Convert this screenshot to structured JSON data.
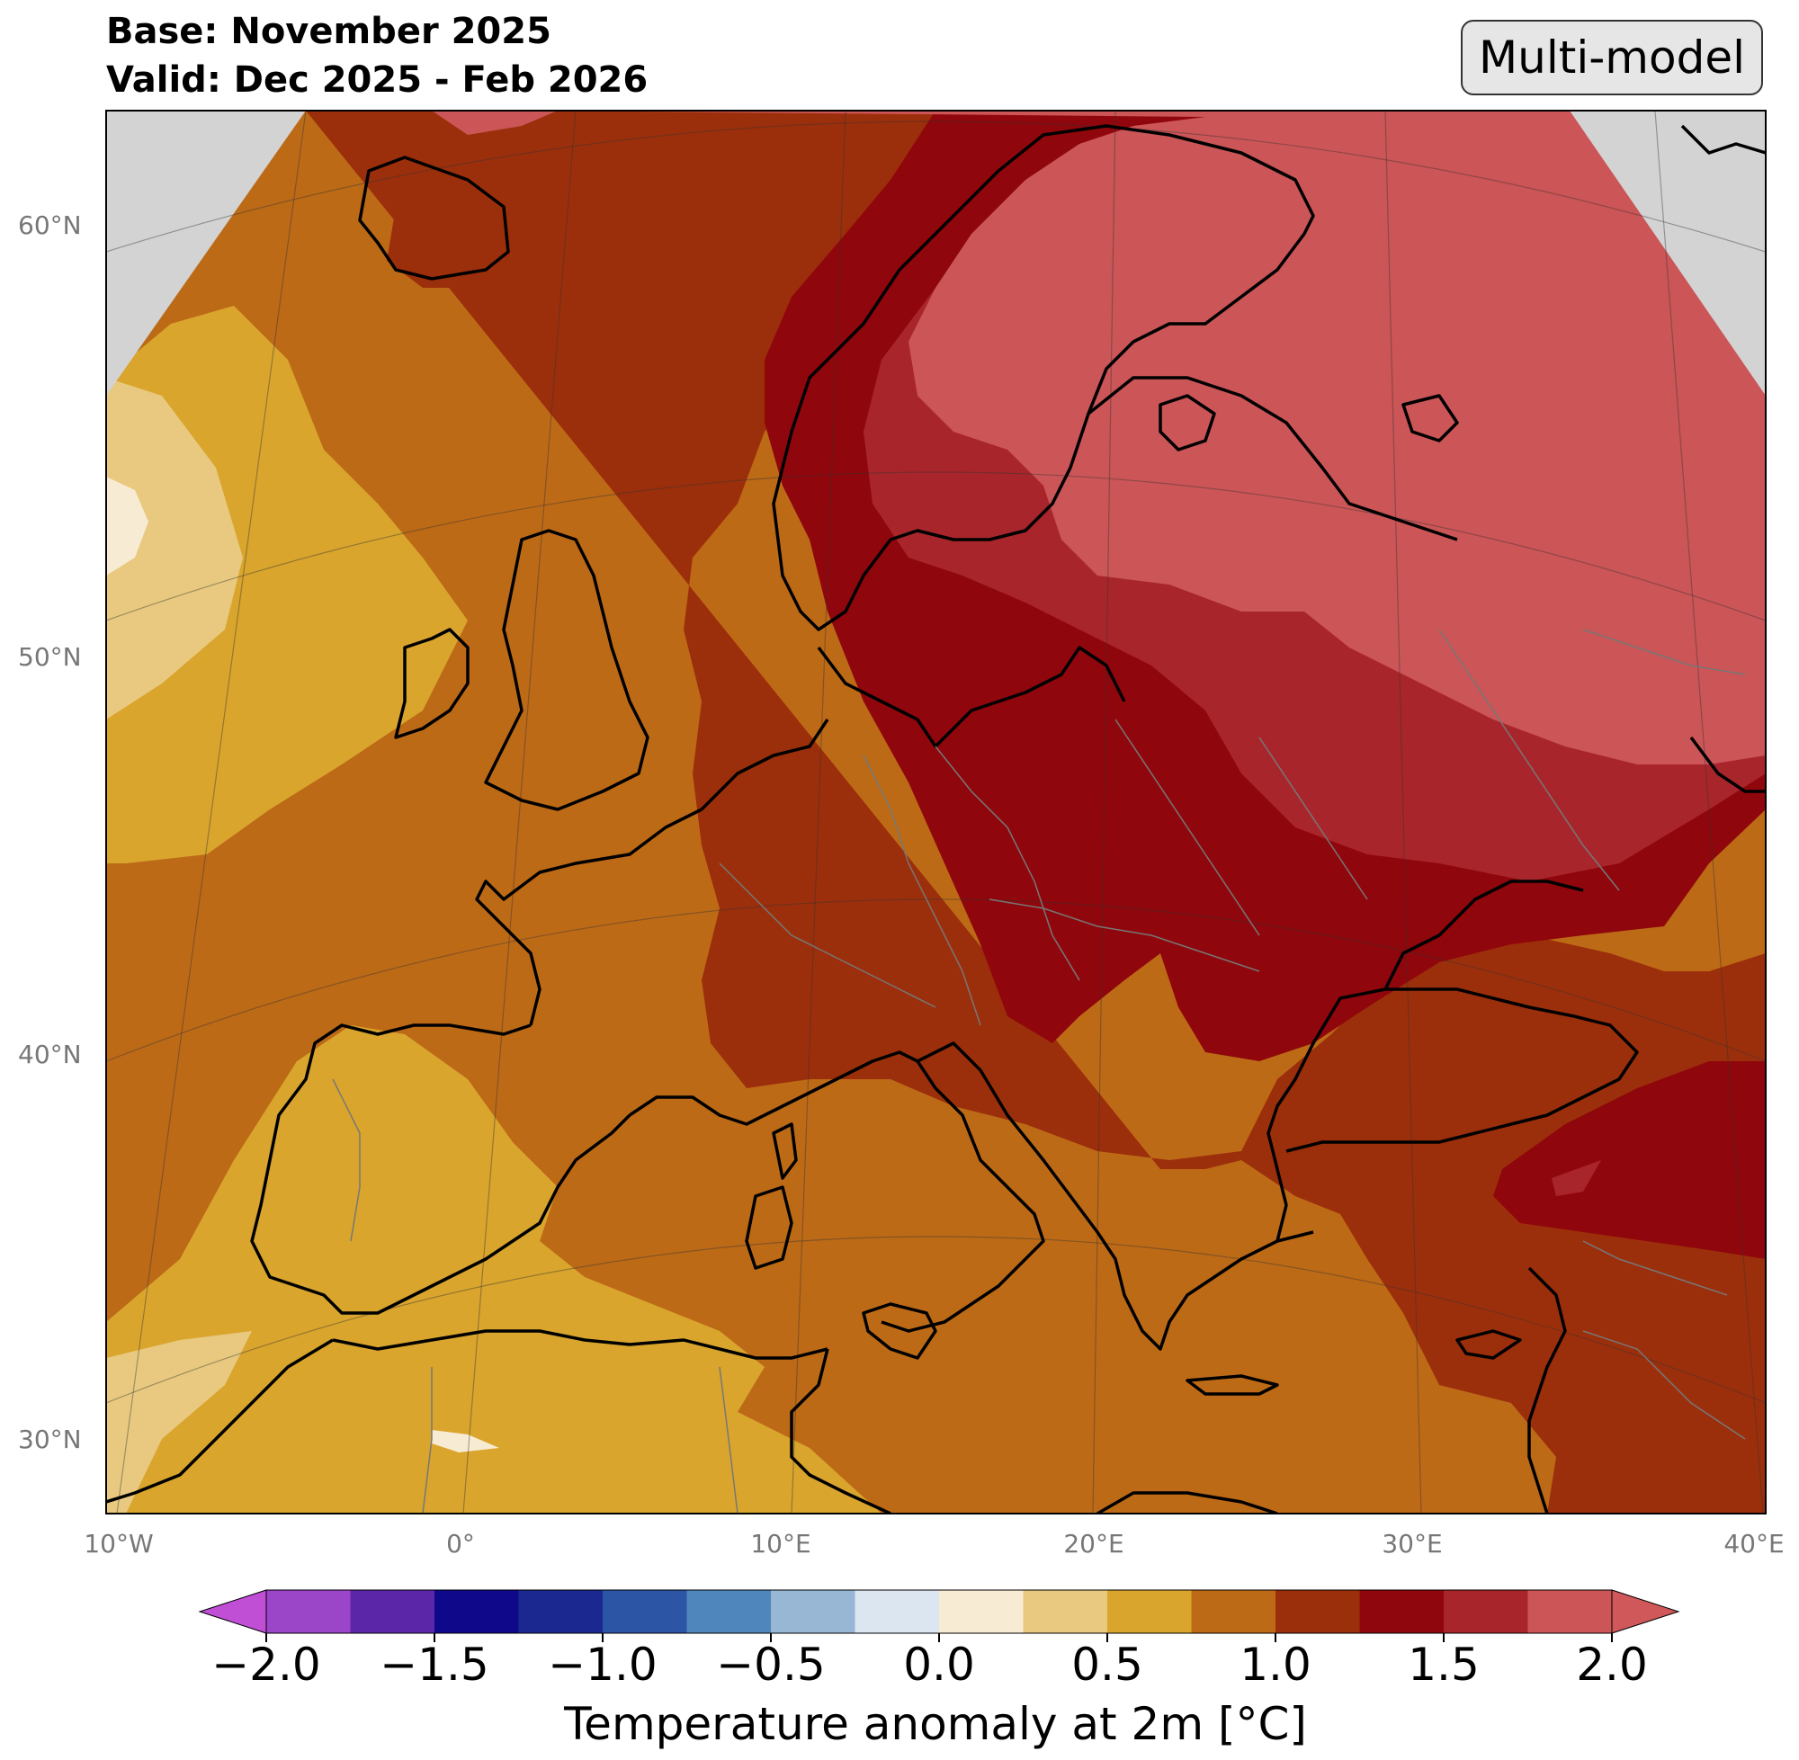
{
  "title": {
    "base": "Base: November 2025",
    "valid": "Valid: Dec 2025 - Feb 2026"
  },
  "badge": "Multi-model",
  "axes": {
    "lat_labels": [
      "60°N",
      "50°N",
      "40°N",
      "30°N"
    ],
    "lon_labels": [
      "10°W",
      "0°",
      "10°E",
      "20°E",
      "30°E",
      "40°E"
    ]
  },
  "colorbar": {
    "label": "Temperature anomaly at 2m [°C]",
    "ticks": [
      "−2.0",
      "−1.5",
      "−1.0",
      "−0.5",
      "0.0",
      "0.5",
      "1.0",
      "1.5",
      "2.0"
    ],
    "colors": [
      "#9b45c9",
      "#5b27a8",
      "#10088a",
      "#1b2890",
      "#2c55a6",
      "#4f86bb",
      "#97b7d4",
      "#dce6f0",
      "#f8ebd3",
      "#e8c97f",
      "#d9a52d",
      "#bd6a17",
      "#9c2f0b",
      "#8f070c",
      "#a8262b",
      "#cb5557"
    ],
    "under_color": "#c04fd6",
    "over_color": "#d0585a"
  },
  "map_colors": {
    "c_025_050": "#e8c97f",
    "c_000_025": "#f8ebd3",
    "c_050_075": "#d9a52d",
    "c_075_100": "#bd6a17",
    "c_100_125": "#9c2f0b",
    "c_125_150": "#8f070c",
    "c_150_175": "#a8262b",
    "c_175_200": "#cb5557",
    "outside": "#d3d3d3"
  }
}
